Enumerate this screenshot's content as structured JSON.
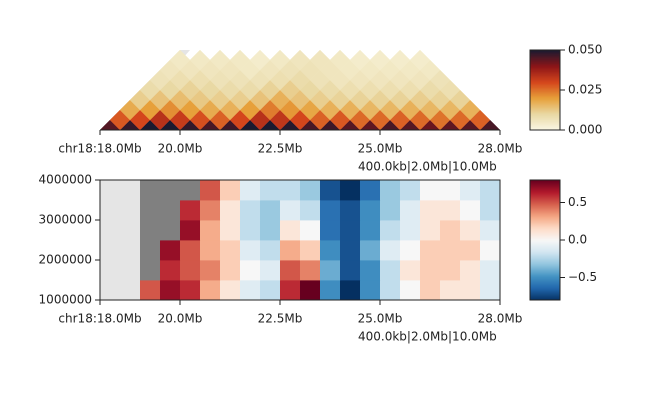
{
  "chart_data": [
    {
      "type": "hic-triangle",
      "bins": [
        18.0,
        18.5,
        19.0,
        19.5,
        20.0,
        20.5,
        21.0,
        21.5,
        22.0,
        22.5,
        23.0,
        23.5,
        24.0,
        24.5,
        25.0,
        25.5,
        26.0,
        26.5,
        27.0,
        27.5,
        28.0
      ],
      "values": [
        [
          0.045,
          0.048,
          0.05,
          0.05,
          0.048,
          0.046,
          0.047,
          0.05,
          0.05,
          0.049,
          0.046,
          0.047,
          0.045,
          0.044,
          0.046,
          0.045,
          0.043,
          0.044,
          0.045,
          0.046
        ],
        [
          0.028,
          0.03,
          0.034,
          0.032,
          0.029,
          0.027,
          0.03,
          0.034,
          0.033,
          0.03,
          0.027,
          0.028,
          0.026,
          0.026,
          0.027,
          0.026,
          0.025,
          0.026,
          0.027
        ],
        [
          0.018,
          0.02,
          0.022,
          0.02,
          0.018,
          0.017,
          0.02,
          0.024,
          0.021,
          0.019,
          0.017,
          0.017,
          0.016,
          0.016,
          0.017,
          0.016,
          0.016,
          0.017
        ],
        [
          0.012,
          0.014,
          0.015,
          0.013,
          0.012,
          0.012,
          0.014,
          0.017,
          0.014,
          0.012,
          0.011,
          0.011,
          0.011,
          0.011,
          0.012,
          0.011,
          0.011
        ],
        [
          0.009,
          0.01,
          0.011,
          0.01,
          0.009,
          0.009,
          0.011,
          0.012,
          0.01,
          0.009,
          0.008,
          0.008,
          0.008,
          0.008,
          0.009,
          0.008
        ],
        [
          0.007,
          0.008,
          0.008,
          0.007,
          0.007,
          0.007,
          0.008,
          0.009,
          0.007,
          0.006,
          0.006,
          0.006,
          0.006,
          0.006,
          0.007
        ],
        [
          0.006,
          0.006,
          0.006,
          0.006,
          0.005,
          0.006,
          0.007,
          0.007,
          0.006,
          0.005,
          0.005,
          0.005,
          0.005,
          0.005
        ],
        [
          0.005,
          0.005,
          0.005,
          0.005,
          0.004,
          0.005,
          0.006,
          0.006,
          0.005,
          0.004,
          0.004,
          0.004,
          0.004
        ]
      ],
      "xlim": [
        18,
        28
      ],
      "xticks": [
        {
          "value": 18,
          "label": "chr18:18.0Mb"
        },
        {
          "value": 20,
          "label": "20.0Mb"
        },
        {
          "value": 22.5,
          "label": "22.5Mb"
        },
        {
          "value": 25,
          "label": "25.0Mb"
        },
        {
          "value": 28,
          "label": "28.0Mb"
        }
      ],
      "annotation": "400.0kb|2.0Mb|10.0Mb",
      "clim": [
        0,
        0.05
      ],
      "cticks": [
        {
          "value": 0,
          "label": "0.000"
        },
        {
          "value": 0.025,
          "label": "0.025"
        },
        {
          "value": 0.05,
          "label": "0.050"
        }
      ],
      "colormap": [
        "#fbf8e6",
        "#e9d9a4",
        "#e7a03a",
        "#d4461c",
        "#8c1518",
        "#1b1a30"
      ]
    },
    {
      "type": "heatmap",
      "x_edges": [
        19.0,
        19.5,
        20.0,
        20.5,
        21.0,
        21.5,
        22.0,
        22.5,
        23.0,
        23.5,
        24.0,
        24.5,
        25.0,
        25.5,
        26.0,
        26.5,
        27.0,
        27.5,
        28.0
      ],
      "y_edges": [
        1000000,
        1500000,
        2000000,
        2500000,
        3000000,
        3500000,
        4000000
      ],
      "values": [
        [
          0.5,
          0.7,
          0.6,
          0.3,
          0.1,
          -0.1,
          -0.2,
          0.6,
          0.8,
          -0.5,
          -0.8,
          -0.5,
          -0.2,
          0.0,
          0.2,
          0.1,
          0.1,
          -0.1
        ],
        [
          null,
          0.6,
          0.5,
          0.4,
          0.2,
          0.0,
          -0.1,
          0.5,
          0.4,
          -0.4,
          -0.7,
          -0.5,
          -0.2,
          0.1,
          0.2,
          0.2,
          0.1,
          -0.1
        ],
        [
          null,
          0.7,
          0.5,
          0.3,
          0.2,
          -0.1,
          -0.2,
          0.3,
          0.2,
          -0.5,
          -0.7,
          -0.4,
          -0.1,
          0.0,
          0.2,
          0.2,
          0.2,
          0.0
        ],
        [
          null,
          null,
          0.7,
          0.3,
          0.1,
          -0.2,
          -0.3,
          0.1,
          0.0,
          -0.6,
          -0.7,
          -0.5,
          -0.2,
          -0.1,
          0.1,
          0.2,
          0.1,
          -0.1
        ],
        [
          null,
          null,
          0.6,
          0.4,
          0.1,
          -0.2,
          -0.3,
          -0.1,
          -0.2,
          -0.6,
          -0.7,
          -0.5,
          -0.3,
          -0.1,
          0.1,
          0.1,
          0.0,
          -0.2
        ],
        [
          null,
          null,
          null,
          0.5,
          0.2,
          -0.1,
          -0.2,
          -0.2,
          -0.3,
          -0.7,
          -0.8,
          -0.6,
          -0.3,
          -0.2,
          0.0,
          0.0,
          -0.1,
          -0.2
        ]
      ],
      "xlim": [
        18,
        28
      ],
      "xticks": [
        {
          "value": 18,
          "label": "chr18:18.0Mb"
        },
        {
          "value": 20,
          "label": "20.0Mb"
        },
        {
          "value": 22.5,
          "label": "22.5Mb"
        },
        {
          "value": 25,
          "label": "25.0Mb"
        },
        {
          "value": 28,
          "label": "28.0Mb"
        }
      ],
      "ylim": [
        1000000,
        4000000
      ],
      "yticks": [
        1000000,
        2000000,
        3000000,
        4000000
      ],
      "annotation": "400.0kb|2.0Mb|10.0Mb",
      "clim": [
        -0.8,
        0.8
      ],
      "cticks": [
        {
          "value": -0.5,
          "label": "−0.5"
        },
        {
          "value": 0,
          "label": "0.0"
        },
        {
          "value": 0.5,
          "label": "0.5"
        }
      ],
      "colormap": [
        "#053061",
        "#2166ac",
        "#4393c3",
        "#92c5de",
        "#d1e5f0",
        "#f7f7f7",
        "#fddbc7",
        "#f4a582",
        "#d6604d",
        "#b2182b",
        "#67001f"
      ],
      "nan_color": "#808080",
      "background": "#e5e5e5"
    }
  ]
}
